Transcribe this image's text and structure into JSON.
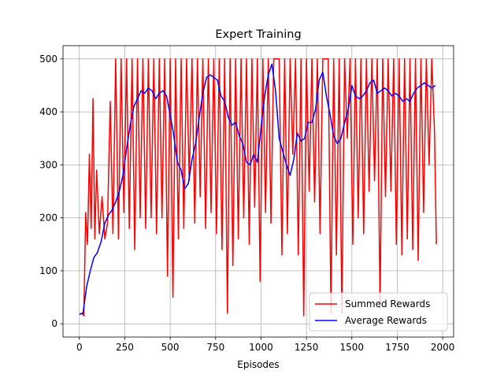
{
  "chart_data": {
    "type": "line",
    "title": "Expert Training",
    "xlabel": "Episodes",
    "ylabel": "",
    "xlim": [
      -90,
      2060
    ],
    "ylim": [
      -25,
      525
    ],
    "x_ticks": [
      0,
      250,
      500,
      750,
      1000,
      1250,
      1500,
      1750,
      2000
    ],
    "y_ticks": [
      0,
      100,
      200,
      300,
      400,
      500
    ],
    "grid": true,
    "legend_position": "lower right",
    "series": [
      {
        "name": "Summed Rewards",
        "color": "#ff0000",
        "style": "noisy",
        "x": [
          0,
          15,
          25,
          35,
          45,
          55,
          65,
          75,
          85,
          95,
          110,
          125,
          140,
          155,
          170,
          185,
          200,
          215,
          230,
          245,
          260,
          275,
          290,
          305,
          320,
          335,
          350,
          365,
          380,
          395,
          410,
          425,
          440,
          455,
          470,
          485,
          500,
          515,
          530,
          545,
          560,
          575,
          590,
          605,
          620,
          635,
          650,
          665,
          680,
          695,
          710,
          725,
          740,
          755,
          770,
          785,
          800,
          815,
          830,
          845,
          860,
          875,
          890,
          905,
          920,
          935,
          950,
          965,
          980,
          995,
          1010,
          1025,
          1040,
          1055,
          1070,
          1085,
          1100,
          1115,
          1130,
          1145,
          1160,
          1175,
          1190,
          1205,
          1220,
          1235,
          1250,
          1265,
          1280,
          1295,
          1310,
          1325,
          1340,
          1355,
          1370,
          1385,
          1400,
          1415,
          1430,
          1445,
          1460,
          1475,
          1490,
          1505,
          1520,
          1535,
          1550,
          1565,
          1580,
          1595,
          1610,
          1625,
          1640,
          1655,
          1670,
          1685,
          1700,
          1715,
          1730,
          1745,
          1760,
          1775,
          1790,
          1805,
          1820,
          1835,
          1850,
          1865,
          1880,
          1895,
          1910,
          1925,
          1940,
          1955,
          1965
        ],
        "values": [
          18,
          20,
          15,
          210,
          150,
          320,
          180,
          425,
          160,
          290,
          170,
          240,
          160,
          190,
          420,
          170,
          500,
          160,
          500,
          210,
          500,
          180,
          500,
          140,
          500,
          200,
          500,
          180,
          500,
          200,
          500,
          170,
          500,
          200,
          500,
          90,
          500,
          50,
          500,
          160,
          500,
          180,
          500,
          270,
          500,
          190,
          500,
          240,
          500,
          180,
          500,
          210,
          500,
          170,
          500,
          140,
          500,
          20,
          500,
          110,
          500,
          160,
          500,
          200,
          500,
          150,
          500,
          220,
          500,
          80,
          500,
          210,
          500,
          190,
          500,
          500,
          500,
          130,
          500,
          170,
          500,
          320,
          500,
          130,
          500,
          15,
          500,
          250,
          500,
          230,
          500,
          170,
          500,
          500,
          500,
          20,
          500,
          130,
          500,
          20,
          500,
          350,
          500,
          150,
          500,
          200,
          500,
          170,
          500,
          250,
          500,
          270,
          500,
          30,
          500,
          240,
          500,
          250,
          500,
          150,
          500,
          130,
          500,
          160,
          500,
          140,
          500,
          120,
          500,
          210,
          500,
          300,
          500,
          360,
          150
        ]
      },
      {
        "name": "Average Rewards",
        "color": "#0000ff",
        "x": [
          0,
          20,
          40,
          60,
          80,
          100,
          120,
          140,
          160,
          180,
          200,
          220,
          240,
          260,
          280,
          300,
          320,
          340,
          360,
          380,
          400,
          420,
          440,
          460,
          480,
          500,
          520,
          540,
          560,
          580,
          600,
          620,
          640,
          660,
          680,
          700,
          720,
          740,
          760,
          780,
          800,
          820,
          840,
          860,
          880,
          900,
          920,
          940,
          960,
          980,
          1000,
          1020,
          1040,
          1060,
          1080,
          1100,
          1120,
          1140,
          1160,
          1180,
          1200,
          1220,
          1240,
          1260,
          1280,
          1300,
          1320,
          1340,
          1360,
          1380,
          1400,
          1420,
          1440,
          1460,
          1480,
          1500,
          1520,
          1540,
          1560,
          1580,
          1600,
          1620,
          1640,
          1660,
          1680,
          1700,
          1720,
          1740,
          1760,
          1780,
          1800,
          1820,
          1840,
          1860,
          1880,
          1900,
          1920,
          1940,
          1960
        ],
        "values": [
          18,
          20,
          70,
          100,
          125,
          135,
          155,
          190,
          205,
          215,
          230,
          250,
          280,
          330,
          375,
          410,
          425,
          440,
          435,
          445,
          440,
          425,
          435,
          440,
          430,
          395,
          355,
          305,
          290,
          255,
          265,
          310,
          340,
          390,
          435,
          465,
          470,
          465,
          460,
          430,
          420,
          390,
          375,
          380,
          355,
          340,
          305,
          300,
          320,
          305,
          370,
          430,
          470,
          490,
          440,
          350,
          325,
          300,
          280,
          310,
          360,
          345,
          350,
          380,
          380,
          405,
          460,
          475,
          430,
          395,
          355,
          340,
          350,
          380,
          405,
          450,
          430,
          425,
          430,
          440,
          455,
          460,
          435,
          440,
          445,
          440,
          430,
          435,
          430,
          420,
          425,
          420,
          435,
          445,
          450,
          455,
          450,
          445,
          450
        ]
      }
    ]
  }
}
